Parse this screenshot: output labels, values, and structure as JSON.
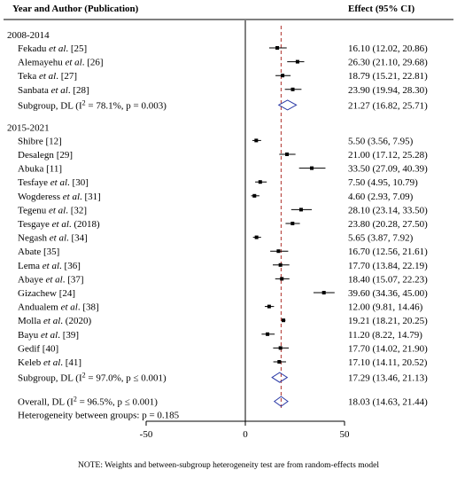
{
  "chart_data": {
    "type": "forest",
    "header": {
      "study_col": "Year and Author (Publication)",
      "effect_col": "Effect (95% CI)"
    },
    "xaxis": {
      "ticks": [
        -50,
        0,
        50
      ],
      "range": [
        -50,
        50
      ],
      "null_line": 0,
      "overall_line": 18.03
    },
    "groups": [
      {
        "label": "2008-2014",
        "studies": [
          {
            "author": "Fekadu",
            "etal": true,
            "ref": "[25]",
            "effect": 16.1,
            "lo": 12.02,
            "hi": 20.86,
            "text": "16.10 (12.02, 20.86)"
          },
          {
            "author": "Alemayehu",
            "etal": true,
            "ref": "[26]",
            "effect": 26.3,
            "lo": 21.1,
            "hi": 29.68,
            "text": "26.30 (21.10, 29.68)"
          },
          {
            "author": "Teka",
            "etal": true,
            "ref": "[27]",
            "effect": 18.79,
            "lo": 15.21,
            "hi": 22.81,
            "text": "18.79 (15.21, 22.81)"
          },
          {
            "author": "Sanbata",
            "etal": true,
            "ref": "[28]",
            "effect": 23.9,
            "lo": 19.94,
            "hi": 28.3,
            "text": "23.90 (19.94, 28.30)"
          }
        ],
        "subgroup": {
          "prefix": "Subgroup, DL (I",
          "sup": "2",
          "stat": "= 78.1%, p = 0.003)",
          "effect": 21.27,
          "lo": 16.82,
          "hi": 25.71,
          "text": "21.27 (16.82, 25.71)"
        }
      },
      {
        "label": "2015-2021",
        "studies": [
          {
            "author": "Shibre",
            "etal": false,
            "ref": "[12]",
            "effect": 5.5,
            "lo": 3.56,
            "hi": 7.95,
            "text": "5.50 (3.56, 7.95)"
          },
          {
            "author": "Desalegn",
            "etal": false,
            "ref": "[29]",
            "effect": 21.0,
            "lo": 17.12,
            "hi": 25.28,
            "text": "21.00 (17.12, 25.28)"
          },
          {
            "author": "Abuka",
            "etal": false,
            "ref": "[11]",
            "effect": 33.5,
            "lo": 27.09,
            "hi": 40.39,
            "text": "33.50 (27.09, 40.39)"
          },
          {
            "author": "Tesfaye",
            "etal": true,
            "ref": "[30]",
            "effect": 7.5,
            "lo": 4.95,
            "hi": 10.79,
            "text": "7.50 (4.95, 10.79)"
          },
          {
            "author": "Wogderess",
            "etal": true,
            "ref": "[31]",
            "effect": 4.6,
            "lo": 2.93,
            "hi": 7.09,
            "text": "4.60 (2.93, 7.09)"
          },
          {
            "author": "Tegenu",
            "etal": true,
            "ref": "[32]",
            "effect": 28.1,
            "lo": 23.14,
            "hi": 33.5,
            "text": "28.10 (23.14, 33.50)"
          },
          {
            "author": "Tesgaye",
            "etal": true,
            "ref": "(2018)",
            "effect": 23.8,
            "lo": 20.28,
            "hi": 27.5,
            "text": "23.80 (20.28, 27.50)"
          },
          {
            "author": "Negash",
            "etal": true,
            "ref": "[34]",
            "effect": 5.65,
            "lo": 3.87,
            "hi": 7.92,
            "text": "5.65 (3.87, 7.92)"
          },
          {
            "author": "Abate",
            "etal": false,
            "ref": "[35]",
            "effect": 16.7,
            "lo": 12.56,
            "hi": 21.61,
            "text": "16.70 (12.56, 21.61)"
          },
          {
            "author": "Lema",
            "etal": true,
            "ref": "[36]",
            "effect": 17.7,
            "lo": 13.84,
            "hi": 22.19,
            "text": "17.70 (13.84, 22.19)"
          },
          {
            "author": "Abaye",
            "etal": true,
            "ref": "[37]",
            "effect": 18.4,
            "lo": 15.07,
            "hi": 22.23,
            "text": "18.40 (15.07, 22.23)"
          },
          {
            "author": "Gizachew",
            "etal": false,
            "ref": "[24]",
            "effect": 39.6,
            "lo": 34.36,
            "hi": 45.0,
            "text": "39.60 (34.36, 45.00)"
          },
          {
            "author": "Andualem",
            "etal": true,
            "ref": "[38]",
            "effect": 12.0,
            "lo": 9.81,
            "hi": 14.46,
            "text": "12.00 (9.81, 14.46)"
          },
          {
            "author": "Molla",
            "etal": true,
            "ref": "(2020)",
            "effect": 19.21,
            "lo": 18.21,
            "hi": 20.25,
            "text": "19.21 (18.21, 20.25)"
          },
          {
            "author": "Bayu",
            "etal": true,
            "ref": "[39]",
            "effect": 11.2,
            "lo": 8.22,
            "hi": 14.79,
            "text": "11.20 (8.22, 14.79)"
          },
          {
            "author": "Gedif",
            "etal": false,
            "ref": "[40]",
            "effect": 17.7,
            "lo": 14.02,
            "hi": 21.9,
            "text": "17.70 (14.02, 21.90)"
          },
          {
            "author": "Keleb",
            "etal": true,
            "ref": "[41]",
            "effect": 17.1,
            "lo": 14.11,
            "hi": 20.52,
            "text": "17.10 (14.11, 20.52)"
          }
        ],
        "subgroup": {
          "prefix": "Subgroup, DL (I",
          "sup": "2",
          "stat": "= 97.0%, p ≤ 0.001)",
          "effect": 17.29,
          "lo": 13.46,
          "hi": 21.13,
          "text": "17.29 (13.46, 21.13)"
        }
      }
    ],
    "overall": {
      "prefix": "Overall, DL (I",
      "sup": "2",
      "stat": "= 96.5%, p ≤ 0.001)",
      "effect": 18.03,
      "lo": 14.63,
      "hi": 21.44,
      "text": "18.03 (14.63, 21.44)"
    },
    "heterogeneity": "Heterogeneity between groups:  p = 0.185",
    "colors": {
      "diamond": "#2b3aa6",
      "overall_line": "#b0302a",
      "lines": "#000000"
    }
  },
  "note": "NOTE: Weights and between-subgroup heterogeneity test are from random-effects model"
}
